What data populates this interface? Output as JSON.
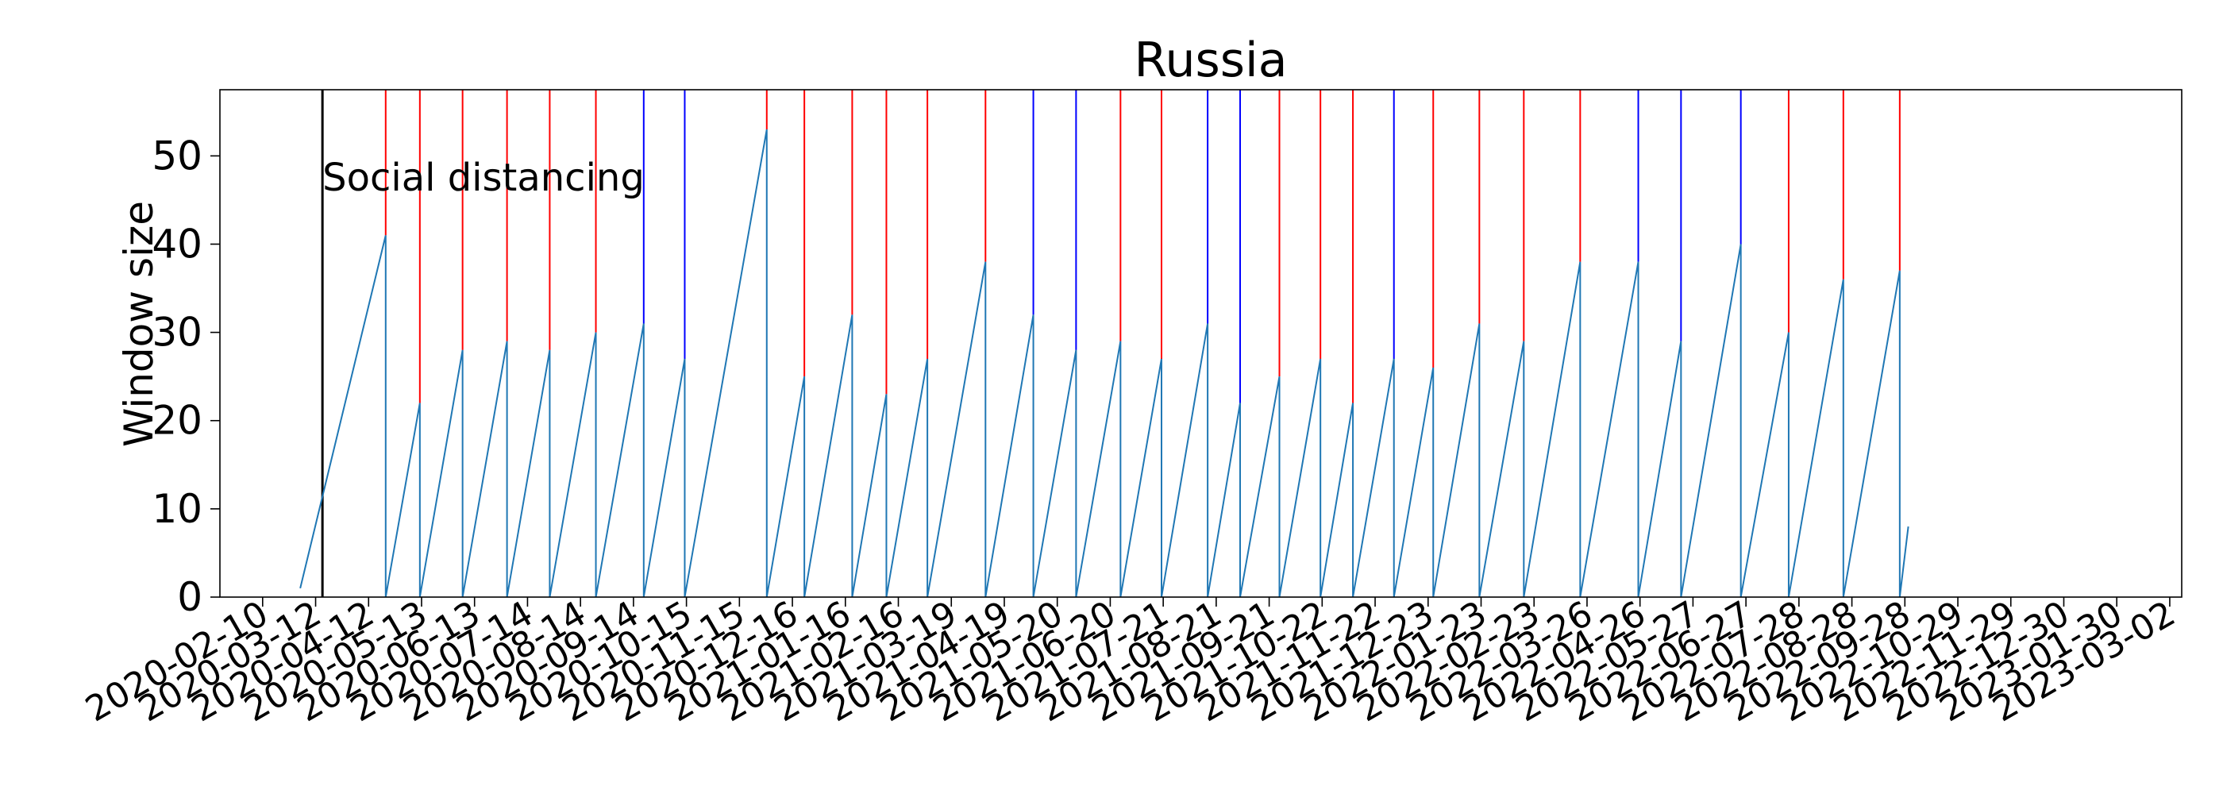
{
  "chart_data": {
    "type": "line",
    "title": "Russia",
    "ylabel": "Window size",
    "xlabel": "",
    "ylim": [
      0,
      57.5
    ],
    "yticks": [
      0,
      10,
      20,
      30,
      40,
      50
    ],
    "xlim": [
      "2020-01-16",
      "2023-03-09"
    ],
    "xticks": [
      "2020-02-10",
      "2020-03-12",
      "2020-04-12",
      "2020-05-13",
      "2020-06-13",
      "2020-07-14",
      "2020-08-14",
      "2020-09-14",
      "2020-10-15",
      "2020-11-15",
      "2020-12-16",
      "2021-01-16",
      "2021-02-16",
      "2021-03-19",
      "2021-04-19",
      "2021-05-20",
      "2021-06-20",
      "2021-07-21",
      "2021-08-21",
      "2021-09-21",
      "2021-10-22",
      "2021-11-22",
      "2021-12-23",
      "2022-01-23",
      "2022-02-23",
      "2022-03-26",
      "2022-04-26",
      "2022-05-27",
      "2022-06-27",
      "2022-07-28",
      "2022-08-28",
      "2022-09-28",
      "2022-10-29",
      "2022-11-29",
      "2022-12-30",
      "2023-01-30",
      "2023-03-02"
    ],
    "line_color": "#1f77b4",
    "annotation": {
      "text": "Social distancing",
      "date": "2020-03-16",
      "color": "#000000"
    },
    "series": [
      {
        "points": [
          [
            "2020-03-03",
            1
          ],
          [
            "2020-04-22",
            41
          ],
          [
            "2020-04-22",
            0
          ],
          [
            "2020-05-12",
            22
          ],
          [
            "2020-05-12",
            0
          ],
          [
            "2020-06-06",
            28
          ],
          [
            "2020-06-06",
            0
          ],
          [
            "2020-07-02",
            29
          ],
          [
            "2020-07-02",
            0
          ],
          [
            "2020-07-27",
            28
          ],
          [
            "2020-07-27",
            0
          ],
          [
            "2020-08-23",
            30
          ],
          [
            "2020-08-23",
            0
          ],
          [
            "2020-09-20",
            31
          ],
          [
            "2020-09-20",
            0
          ],
          [
            "2020-10-14",
            27
          ],
          [
            "2020-10-14",
            0
          ],
          [
            "2020-12-01",
            53
          ],
          [
            "2020-12-01",
            0
          ],
          [
            "2020-12-23",
            25
          ],
          [
            "2020-12-23",
            0
          ],
          [
            "2021-01-20",
            32
          ],
          [
            "2021-01-20",
            0
          ],
          [
            "2021-02-09",
            23
          ],
          [
            "2021-02-09",
            0
          ],
          [
            "2021-03-05",
            27
          ],
          [
            "2021-03-05",
            0
          ],
          [
            "2021-04-08",
            38
          ],
          [
            "2021-04-08",
            0
          ],
          [
            "2021-05-06",
            32
          ],
          [
            "2021-05-06",
            0
          ],
          [
            "2021-05-31",
            28
          ],
          [
            "2021-05-31",
            0
          ],
          [
            "2021-06-26",
            29
          ],
          [
            "2021-06-26",
            0
          ],
          [
            "2021-07-20",
            27
          ],
          [
            "2021-07-20",
            0
          ],
          [
            "2021-08-16",
            31
          ],
          [
            "2021-08-16",
            0
          ],
          [
            "2021-09-04",
            22
          ],
          [
            "2021-09-04",
            0
          ],
          [
            "2021-09-27",
            25
          ],
          [
            "2021-09-27",
            0
          ],
          [
            "2021-10-21",
            27
          ],
          [
            "2021-10-21",
            0
          ],
          [
            "2021-11-09",
            22
          ],
          [
            "2021-11-09",
            0
          ],
          [
            "2021-12-03",
            27
          ],
          [
            "2021-12-03",
            0
          ],
          [
            "2021-12-26",
            26
          ],
          [
            "2021-12-26",
            0
          ],
          [
            "2022-01-22",
            31
          ],
          [
            "2022-01-22",
            0
          ],
          [
            "2022-02-17",
            29
          ],
          [
            "2022-02-17",
            0
          ],
          [
            "2022-03-22",
            38
          ],
          [
            "2022-03-22",
            0
          ],
          [
            "2022-04-25",
            38
          ],
          [
            "2022-04-25",
            0
          ],
          [
            "2022-05-20",
            29
          ],
          [
            "2022-05-20",
            0
          ],
          [
            "2022-06-24",
            40
          ],
          [
            "2022-06-24",
            0
          ],
          [
            "2022-07-22",
            30
          ],
          [
            "2022-07-22",
            0
          ],
          [
            "2022-08-23",
            36
          ],
          [
            "2022-08-23",
            0
          ],
          [
            "2022-09-25",
            37
          ],
          [
            "2022-09-25",
            0
          ],
          [
            "2022-09-30",
            8
          ]
        ]
      }
    ],
    "change_points": [
      {
        "date": "2020-04-22",
        "color": "#ff0000"
      },
      {
        "date": "2020-05-12",
        "color": "#ff0000"
      },
      {
        "date": "2020-06-06",
        "color": "#ff0000"
      },
      {
        "date": "2020-07-02",
        "color": "#ff0000"
      },
      {
        "date": "2020-07-27",
        "color": "#ff0000"
      },
      {
        "date": "2020-08-23",
        "color": "#ff0000"
      },
      {
        "date": "2020-09-20",
        "color": "#0000ff"
      },
      {
        "date": "2020-10-14",
        "color": "#0000ff"
      },
      {
        "date": "2020-12-01",
        "color": "#ff0000"
      },
      {
        "date": "2020-12-23",
        "color": "#ff0000"
      },
      {
        "date": "2021-01-20",
        "color": "#ff0000"
      },
      {
        "date": "2021-02-09",
        "color": "#ff0000"
      },
      {
        "date": "2021-03-05",
        "color": "#ff0000"
      },
      {
        "date": "2021-04-08",
        "color": "#ff0000"
      },
      {
        "date": "2021-05-06",
        "color": "#0000ff"
      },
      {
        "date": "2021-05-31",
        "color": "#0000ff"
      },
      {
        "date": "2021-06-26",
        "color": "#ff0000"
      },
      {
        "date": "2021-07-20",
        "color": "#ff0000"
      },
      {
        "date": "2021-08-16",
        "color": "#0000ff"
      },
      {
        "date": "2021-09-04",
        "color": "#0000ff"
      },
      {
        "date": "2021-09-27",
        "color": "#ff0000"
      },
      {
        "date": "2021-10-21",
        "color": "#ff0000"
      },
      {
        "date": "2021-11-09",
        "color": "#ff0000"
      },
      {
        "date": "2021-12-03",
        "color": "#0000ff"
      },
      {
        "date": "2021-12-26",
        "color": "#ff0000"
      },
      {
        "date": "2022-01-22",
        "color": "#ff0000"
      },
      {
        "date": "2022-02-17",
        "color": "#ff0000"
      },
      {
        "date": "2022-03-22",
        "color": "#ff0000"
      },
      {
        "date": "2022-04-25",
        "color": "#0000ff"
      },
      {
        "date": "2022-05-20",
        "color": "#0000ff"
      },
      {
        "date": "2022-06-24",
        "color": "#0000ff"
      },
      {
        "date": "2022-07-22",
        "color": "#ff0000"
      },
      {
        "date": "2022-08-23",
        "color": "#ff0000"
      },
      {
        "date": "2022-09-25",
        "color": "#ff0000"
      }
    ]
  }
}
